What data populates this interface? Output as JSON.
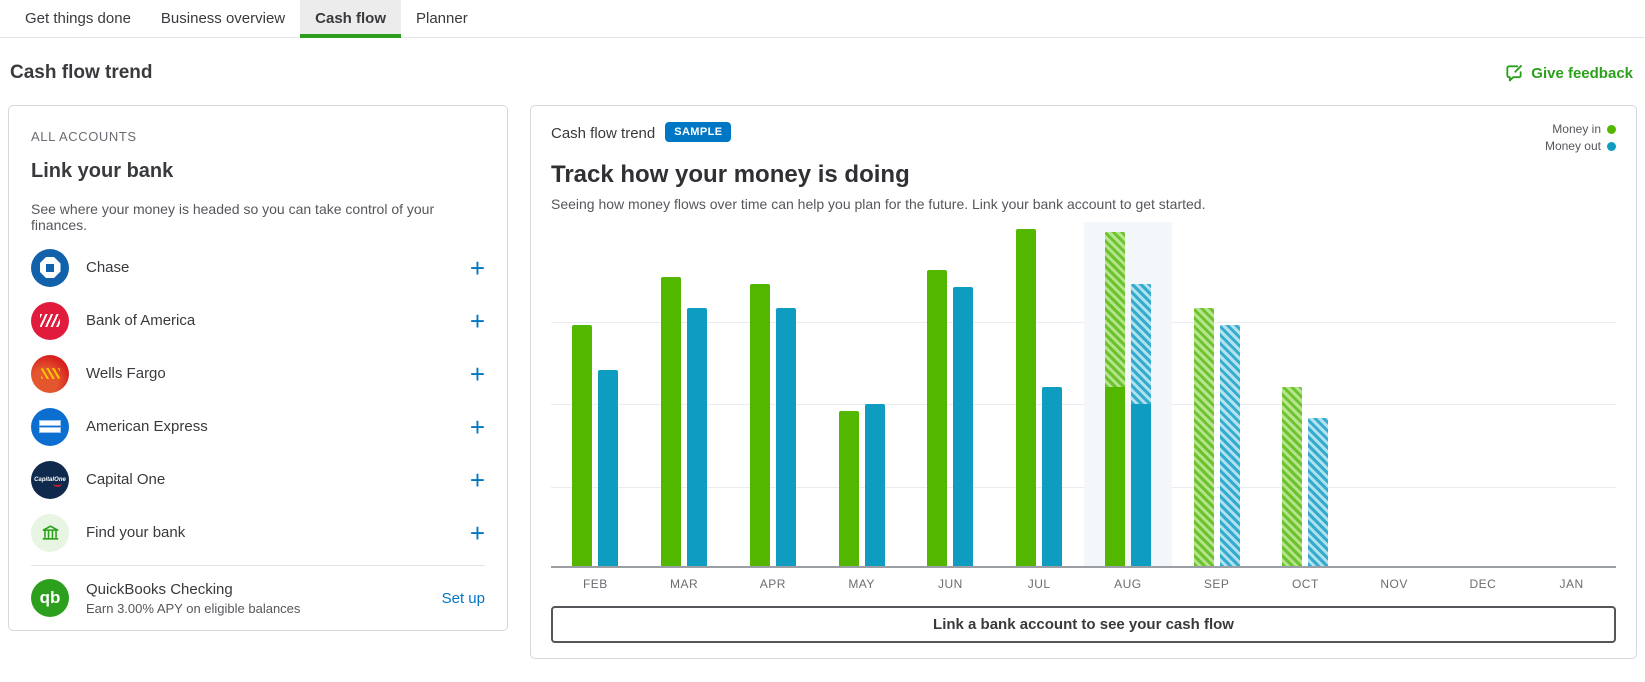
{
  "tabs": [
    {
      "label": "Get things done",
      "active": false
    },
    {
      "label": "Business overview",
      "active": false
    },
    {
      "label": "Cash flow",
      "active": true
    },
    {
      "label": "Planner",
      "active": false
    }
  ],
  "header": {
    "title": "Cash flow trend",
    "feedback_label": "Give feedback"
  },
  "accounts_card": {
    "section_label": "ALL ACCOUNTS",
    "title": "Link your bank",
    "description": "See where your money is headed so you can take control of your finances.",
    "add_label": "+",
    "banks": [
      {
        "name": "Chase"
      },
      {
        "name": "Bank of America"
      },
      {
        "name": "Wells Fargo"
      },
      {
        "name": "American Express"
      },
      {
        "name": "Capital One"
      },
      {
        "name": "Find your bank"
      }
    ],
    "qb_checking": {
      "name": "QuickBooks Checking",
      "subtitle": "Earn 3.00% APY on eligible balances",
      "action": "Set up",
      "logo_text": "qb"
    }
  },
  "chart_card": {
    "title": "Cash flow trend",
    "badge": "SAMPLE",
    "heading": "Track how your money is doing",
    "subheading": "Seeing how money flows over time can help you plan for the future. Link your bank account to get started.",
    "legend": [
      {
        "label": "Money in",
        "color": "#53B700"
      },
      {
        "label": "Money out",
        "color": "#0E9DC0"
      }
    ],
    "button": "Link a bank account to see your cash flow"
  },
  "colors": {
    "brand_green": "#2CA01C",
    "link_blue": "#0077C5",
    "bar_in_green": "#53B700",
    "bar_out_teal": "#0E9DC0",
    "highlight_column": "#F3F7F9"
  },
  "chart_data": {
    "type": "bar",
    "title": "Cash flow trend (sample)",
    "categories": [
      "FEB",
      "MAR",
      "APR",
      "MAY",
      "JUN",
      "JUL",
      "AUG",
      "SEP",
      "OCT",
      "NOV",
      "DEC",
      "JAN"
    ],
    "series": [
      {
        "name": "Money in",
        "color": "#53B700",
        "values": [
          70,
          84,
          82,
          45,
          86,
          98,
          97,
          75,
          52,
          0,
          0,
          0
        ]
      },
      {
        "name": "Money out",
        "color": "#0E9DC0",
        "values": [
          57,
          75,
          75,
          47,
          81,
          52,
          82,
          70,
          43,
          0,
          0,
          0
        ]
      }
    ],
    "projected": {
      "note": "Hatched portions are projected: AUG split solid/projected, SEP and OCT fully projected",
      "in_solid": [
        70,
        84,
        82,
        45,
        86,
        98,
        52,
        0,
        0,
        0,
        0,
        0
      ],
      "out_solid": [
        57,
        75,
        75,
        47,
        81,
        52,
        47,
        0,
        0,
        0,
        0,
        0
      ],
      "highlight_month": "AUG"
    },
    "ylim": [
      0,
      100
    ],
    "y_axis_labels_shown": false,
    "grid": "horizontal",
    "legend_position": "top-right",
    "units": "relative bar height (percent of plot, no y tick labels shown)"
  }
}
